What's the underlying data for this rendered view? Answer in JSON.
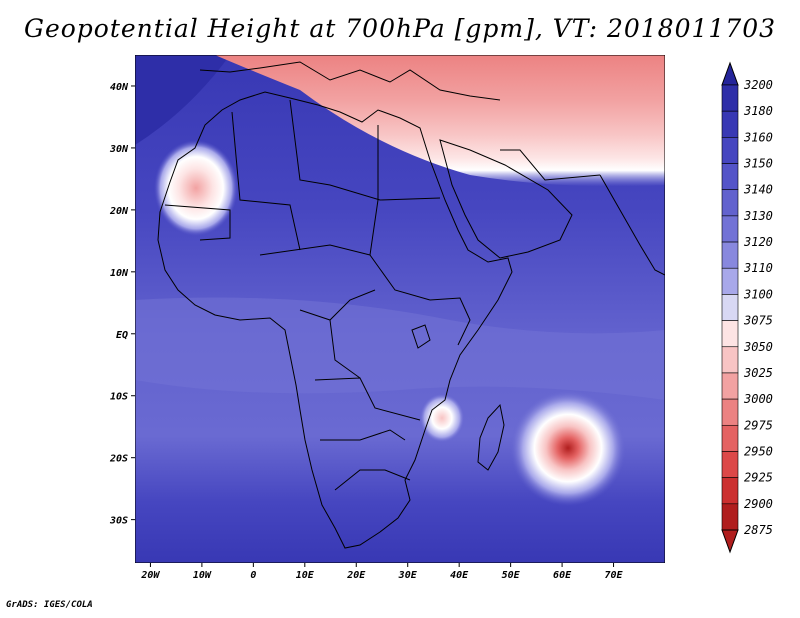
{
  "title": "Geopotential Height at 700hPa [gpm], VT: 2018011703",
  "credit": "GrADS: IGES/COLA",
  "x_ticks": [
    "20W",
    "10W",
    "0",
    "10E",
    "20E",
    "30E",
    "40E",
    "50E",
    "60E",
    "70E"
  ],
  "y_ticks": [
    "40N",
    "30N",
    "20N",
    "10N",
    "EQ",
    "10S",
    "20S",
    "30S"
  ],
  "colorbar": {
    "levels": [
      "3200",
      "3180",
      "3160",
      "3150",
      "3140",
      "3130",
      "3120",
      "3110",
      "3100",
      "3075",
      "3050",
      "3025",
      "3000",
      "2975",
      "2950",
      "2925",
      "2900",
      "2875"
    ],
    "colors": [
      "#24249a",
      "#2e2ea8",
      "#3838b4",
      "#4646c0",
      "#5454c8",
      "#6262ce",
      "#7272d6",
      "#8888de",
      "#a8a8ea",
      "#d8d8f4",
      "#fde4e4",
      "#f8c4c4",
      "#f2a2a2",
      "#ec8282",
      "#e46262",
      "#dc4848",
      "#cc3030",
      "#b01e1e"
    ]
  },
  "map": {
    "lon_range": [
      -23,
      80
    ],
    "lat_range": [
      -37,
      45
    ],
    "features": [
      {
        "name": "polar-trough-band",
        "lat_range": [
          28,
          45
        ],
        "min_value": 3000
      },
      {
        "name": "saharan-low",
        "lon": -10,
        "lat": 24,
        "min_value": 3025
      },
      {
        "name": "cyclone-low-indian-ocean",
        "lon": 61,
        "lat": -18,
        "min_value": 2875
      },
      {
        "name": "mozambique-channel-low",
        "lon": 39,
        "lat": -13,
        "min_value": 3075
      }
    ]
  }
}
